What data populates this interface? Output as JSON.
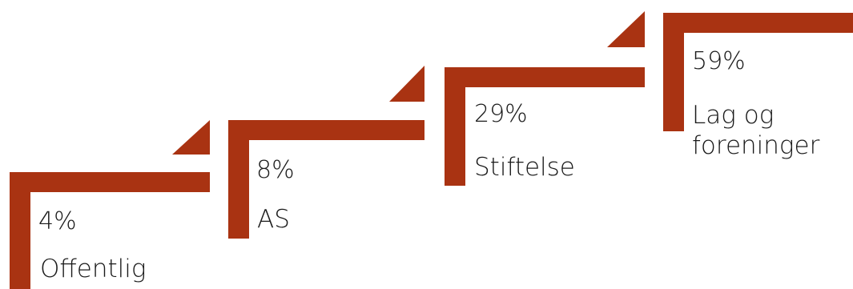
{
  "colors": {
    "step": "#a93312",
    "text": "#1a1a1a",
    "background": "#ffffff"
  },
  "steps": [
    {
      "percent": "4%",
      "value": 4,
      "label": "Offentlig"
    },
    {
      "percent": "8%",
      "value": 8,
      "label": "AS"
    },
    {
      "percent": "29%",
      "value": 29,
      "label": "Stiftelse"
    },
    {
      "percent": "59%",
      "value": 59,
      "label": "Lag og\nforeninger"
    }
  ]
}
